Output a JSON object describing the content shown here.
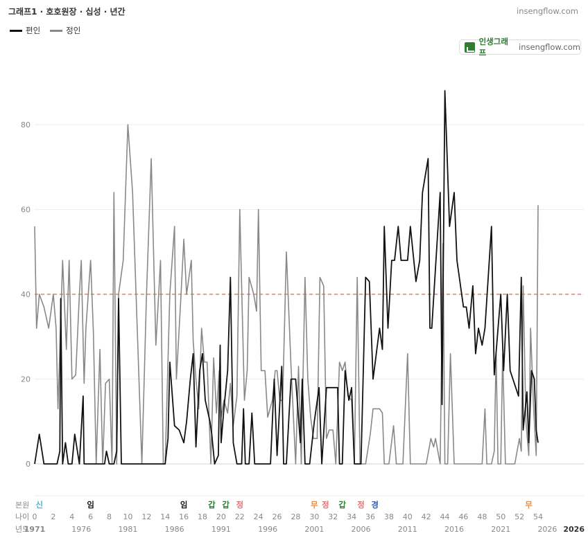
{
  "header": {
    "title": "그래프1 · 호호원장 · 십성 · 년간",
    "site": "insengflow.com"
  },
  "badge": {
    "name": "인생그래프",
    "site": "insengflow.com"
  },
  "legend": [
    {
      "label": "편인",
      "color": "#111111"
    },
    {
      "label": "정인",
      "color": "#888888"
    }
  ],
  "bottom_rows": {
    "row1_label": "본원",
    "row2_label": "나이",
    "row3_label": "년도",
    "marks": [
      {
        "text": "신",
        "age": 0.5,
        "color": "#4fb3d9"
      },
      {
        "text": "임",
        "age": 6,
        "color": "#111111"
      },
      {
        "text": "임",
        "age": 16,
        "color": "#111111"
      },
      {
        "text": "갑",
        "age": 19,
        "color": "#2e7d32"
      },
      {
        "text": "갑",
        "age": 20.5,
        "color": "#2e7d32"
      },
      {
        "text": "정",
        "age": 22,
        "color": "#e57373"
      },
      {
        "text": "무",
        "age": 30,
        "color": "#ef8a3c"
      },
      {
        "text": "정",
        "age": 31.2,
        "color": "#e57373"
      },
      {
        "text": "갑",
        "age": 33,
        "color": "#2e7d32"
      },
      {
        "text": "정",
        "age": 35,
        "color": "#e57373"
      },
      {
        "text": "경",
        "age": 36.5,
        "color": "#2e5fa8"
      },
      {
        "text": "무",
        "age": 53,
        "color": "#ef8a3c"
      }
    ],
    "ages": [
      "0",
      "2",
      "4",
      "6",
      "8",
      "10",
      "12",
      "14",
      "16",
      "18",
      "20",
      "22",
      "24",
      "26",
      "28",
      "30",
      "32",
      "34",
      "36",
      "38",
      "40",
      "42",
      "44",
      "46",
      "48",
      "50",
      "52",
      "54"
    ],
    "years": [
      "1971",
      "1976",
      "1981",
      "1986",
      "1991",
      "1996",
      "2001",
      "2006",
      "2011",
      "2016",
      "2021",
      "2026"
    ],
    "year_end": "2026"
  },
  "chart_data": {
    "type": "line",
    "title": "그래프1 · 호호원장 · 십성 · 년간",
    "xlabel": "",
    "ylabel": "",
    "xlim": [
      1971,
      2026
    ],
    "ylim": [
      0,
      90
    ],
    "yticks": [
      0,
      20,
      40,
      60,
      80
    ],
    "reference_line": {
      "y": 40,
      "color": "#d9694a",
      "style": "dashed"
    },
    "grid": true,
    "series": [
      {
        "name": "편인",
        "color": "#111111",
        "points": [
          [
            1971,
            0
          ],
          [
            1971.5,
            7
          ],
          [
            1972,
            0
          ],
          [
            1973,
            0
          ],
          [
            1973.4,
            0
          ],
          [
            1973.7,
            3
          ],
          [
            1973.8,
            39
          ],
          [
            1974,
            0
          ],
          [
            1974.3,
            5
          ],
          [
            1974.6,
            0
          ],
          [
            1975,
            0
          ],
          [
            1975.3,
            7
          ],
          [
            1975.8,
            0
          ],
          [
            1976.2,
            16
          ],
          [
            1976.3,
            0
          ],
          [
            1977,
            0
          ],
          [
            1978,
            0
          ],
          [
            1978.5,
            0
          ],
          [
            1978.7,
            3
          ],
          [
            1979,
            0
          ],
          [
            1979.5,
            0
          ],
          [
            1979.8,
            3
          ],
          [
            1980,
            39
          ],
          [
            1980.3,
            0
          ],
          [
            1981,
            0
          ],
          [
            1982,
            0
          ],
          [
            1983,
            0
          ],
          [
            1984,
            0
          ],
          [
            1985,
            0
          ],
          [
            1985.3,
            6
          ],
          [
            1985.5,
            24
          ],
          [
            1986,
            9
          ],
          [
            1986.5,
            8
          ],
          [
            1987,
            5
          ],
          [
            1987.3,
            10
          ],
          [
            1987.7,
            20
          ],
          [
            1988,
            26
          ],
          [
            1988.3,
            4
          ],
          [
            1988.7,
            22
          ],
          [
            1989,
            26
          ],
          [
            1989.3,
            15
          ],
          [
            1989.8,
            10
          ],
          [
            1990,
            7
          ],
          [
            1990.3,
            0
          ],
          [
            1990.7,
            2
          ],
          [
            1990.9,
            28
          ],
          [
            1991,
            5
          ],
          [
            1991.3,
            13
          ],
          [
            1991.7,
            22
          ],
          [
            1992,
            44
          ],
          [
            1992.3,
            5
          ],
          [
            1992.7,
            0
          ],
          [
            1993.2,
            0
          ],
          [
            1993.4,
            13
          ],
          [
            1993.6,
            0
          ],
          [
            1994,
            0
          ],
          [
            1994.3,
            12
          ],
          [
            1994.6,
            0
          ],
          [
            1995,
            0
          ],
          [
            1996,
            0
          ],
          [
            1996.3,
            0
          ],
          [
            1996.7,
            20
          ],
          [
            1997,
            2
          ],
          [
            1997.5,
            23
          ],
          [
            1997.7,
            0
          ],
          [
            1998,
            0
          ],
          [
            1998.5,
            20
          ],
          [
            1999,
            20
          ],
          [
            1999.5,
            5
          ],
          [
            1999.7,
            20
          ],
          [
            2000,
            0
          ],
          [
            2000.5,
            0
          ],
          [
            2001,
            10
          ],
          [
            2001.5,
            18
          ],
          [
            2001.8,
            0
          ],
          [
            2002.3,
            18
          ],
          [
            2003.5,
            18
          ],
          [
            2003.7,
            0
          ],
          [
            2004,
            0
          ],
          [
            2004.3,
            22
          ],
          [
            2004.7,
            15
          ],
          [
            2005,
            18
          ],
          [
            2005.3,
            0
          ],
          [
            2005.7,
            0
          ],
          [
            2006,
            0
          ],
          [
            2006.5,
            44
          ],
          [
            2006.9,
            43
          ],
          [
            2007.3,
            20
          ],
          [
            2008,
            32
          ],
          [
            2008.3,
            27
          ],
          [
            2008.5,
            56
          ],
          [
            2008.9,
            32
          ],
          [
            2009.3,
            48
          ],
          [
            2009.6,
            48
          ],
          [
            2010,
            56
          ],
          [
            2010.3,
            48
          ],
          [
            2011,
            48
          ],
          [
            2011.3,
            56
          ],
          [
            2011.9,
            43
          ],
          [
            2012.3,
            48
          ],
          [
            2012.6,
            64
          ],
          [
            2013.2,
            72
          ],
          [
            2013.4,
            32
          ],
          [
            2013.6,
            32
          ],
          [
            2014.5,
            64
          ],
          [
            2014.7,
            14
          ],
          [
            2015,
            88
          ],
          [
            2015.5,
            56
          ],
          [
            2016,
            64
          ],
          [
            2016.3,
            48
          ],
          [
            2017,
            37
          ],
          [
            2017.3,
            37
          ],
          [
            2017.6,
            32
          ],
          [
            2018,
            42
          ],
          [
            2018.3,
            26
          ],
          [
            2018.6,
            32
          ],
          [
            2019,
            28
          ],
          [
            2019.3,
            32
          ],
          [
            2020,
            56
          ],
          [
            2020.3,
            21
          ],
          [
            2020.6,
            29
          ],
          [
            2021,
            40
          ],
          [
            2021.3,
            22
          ],
          [
            2021.7,
            40
          ],
          [
            2022,
            22
          ],
          [
            2022.9,
            16
          ],
          [
            2023.2,
            44
          ],
          [
            2023.4,
            8
          ],
          [
            2023.8,
            17
          ],
          [
            2024,
            5
          ],
          [
            2024.3,
            22
          ],
          [
            2024.6,
            20
          ],
          [
            2024.8,
            8
          ],
          [
            2025,
            5
          ]
        ]
      },
      {
        "name": "정인",
        "color": "#888888",
        "points": [
          [
            1971,
            56
          ],
          [
            1971.2,
            32
          ],
          [
            1971.5,
            40
          ],
          [
            1972,
            37
          ],
          [
            1972.5,
            32
          ],
          [
            1973,
            40
          ],
          [
            1973.3,
            32
          ],
          [
            1973.5,
            13
          ],
          [
            1974,
            48
          ],
          [
            1974.4,
            27
          ],
          [
            1974.7,
            48
          ],
          [
            1975,
            20
          ],
          [
            1975.4,
            21
          ],
          [
            1975.8,
            40
          ],
          [
            1976,
            48
          ],
          [
            1976.3,
            19
          ],
          [
            1976.5,
            32
          ],
          [
            1977,
            48
          ],
          [
            1977.3,
            31
          ],
          [
            1977.6,
            0
          ],
          [
            1978,
            27
          ],
          [
            1978.3,
            0
          ],
          [
            1978.6,
            19
          ],
          [
            1979,
            20
          ],
          [
            1979.3,
            0
          ],
          [
            1979.5,
            64
          ],
          [
            1979.8,
            0
          ],
          [
            1980,
            40
          ],
          [
            1980.5,
            48
          ],
          [
            1981,
            80
          ],
          [
            1981.5,
            64
          ],
          [
            1982,
            32
          ],
          [
            1982.5,
            0
          ],
          [
            1983,
            40
          ],
          [
            1983.5,
            72
          ],
          [
            1984,
            28
          ],
          [
            1984.5,
            48
          ],
          [
            1984.8,
            0
          ],
          [
            1985,
            0
          ],
          [
            1985.5,
            40
          ],
          [
            1986,
            56
          ],
          [
            1986.2,
            20
          ],
          [
            1986.7,
            40
          ],
          [
            1987,
            53
          ],
          [
            1987.3,
            40
          ],
          [
            1987.8,
            48
          ],
          [
            1988,
            29
          ],
          [
            1988.3,
            20
          ],
          [
            1988.6,
            13
          ],
          [
            1988.9,
            32
          ],
          [
            1989.2,
            24
          ],
          [
            1989.5,
            24
          ],
          [
            1989.9,
            0
          ],
          [
            1990.2,
            25
          ],
          [
            1990.5,
            12
          ],
          [
            1990.8,
            22
          ],
          [
            1991,
            11
          ],
          [
            1991.3,
            15
          ],
          [
            1991.7,
            12
          ],
          [
            1992,
            19
          ],
          [
            1992.3,
            9
          ],
          [
            1992.7,
            16
          ],
          [
            1993,
            60
          ],
          [
            1993.5,
            15
          ],
          [
            1993.8,
            22
          ],
          [
            1994,
            44
          ],
          [
            1994.5,
            40
          ],
          [
            1994.8,
            36
          ],
          [
            1995,
            60
          ],
          [
            1995.3,
            22
          ],
          [
            1995.7,
            22
          ],
          [
            1996,
            11
          ],
          [
            1996.5,
            15
          ],
          [
            1996.8,
            22
          ],
          [
            1997,
            22
          ],
          [
            1997.3,
            15
          ],
          [
            1997.6,
            15
          ],
          [
            1998,
            50
          ],
          [
            1998.5,
            23
          ],
          [
            1999,
            0
          ],
          [
            1999.3,
            23
          ],
          [
            1999.6,
            0
          ],
          [
            2000,
            44
          ],
          [
            2000.3,
            20
          ],
          [
            2000.6,
            11
          ],
          [
            2000.9,
            6
          ],
          [
            2001.3,
            6
          ],
          [
            2001.6,
            44
          ],
          [
            2002,
            42
          ],
          [
            2002.3,
            6
          ],
          [
            2002.6,
            8
          ],
          [
            2003,
            8
          ],
          [
            2003.3,
            0
          ],
          [
            2003.7,
            24
          ],
          [
            2004,
            22
          ],
          [
            2004.3,
            24
          ],
          [
            2004.6,
            16
          ],
          [
            2005,
            15
          ],
          [
            2005.3,
            0
          ],
          [
            2005.6,
            44
          ],
          [
            2005.9,
            0
          ],
          [
            2006.5,
            0
          ],
          [
            2007,
            7
          ],
          [
            2007.3,
            13
          ],
          [
            2008,
            13
          ],
          [
            2008.3,
            12
          ],
          [
            2008.5,
            0
          ],
          [
            2009,
            0
          ],
          [
            2009.5,
            9
          ],
          [
            2009.8,
            0
          ],
          [
            2010,
            0
          ],
          [
            2010.5,
            0
          ],
          [
            2011,
            26
          ],
          [
            2011.3,
            0
          ],
          [
            2012,
            0
          ],
          [
            2013,
            0
          ],
          [
            2013.5,
            6
          ],
          [
            2013.8,
            4
          ],
          [
            2014,
            6
          ],
          [
            2014.5,
            0
          ],
          [
            2014.8,
            52
          ],
          [
            2015,
            0
          ],
          [
            2015.3,
            0
          ],
          [
            2015.6,
            26
          ],
          [
            2016,
            0
          ],
          [
            2017,
            0
          ],
          [
            2018,
            0
          ],
          [
            2019,
            0
          ],
          [
            2019.3,
            13
          ],
          [
            2019.5,
            0
          ],
          [
            2020,
            0
          ],
          [
            2020.3,
            3
          ],
          [
            2020.5,
            26
          ],
          [
            2020.7,
            0
          ],
          [
            2021,
            0
          ],
          [
            2021.2,
            26
          ],
          [
            2021.5,
            0
          ],
          [
            2022,
            0
          ],
          [
            2022.5,
            0
          ],
          [
            2023,
            6
          ],
          [
            2023.2,
            3
          ],
          [
            2023.4,
            42
          ],
          [
            2023.7,
            10
          ],
          [
            2024,
            2
          ],
          [
            2024.2,
            32
          ],
          [
            2024.5,
            14
          ],
          [
            2024.8,
            2
          ],
          [
            2025,
            61
          ]
        ]
      }
    ]
  }
}
